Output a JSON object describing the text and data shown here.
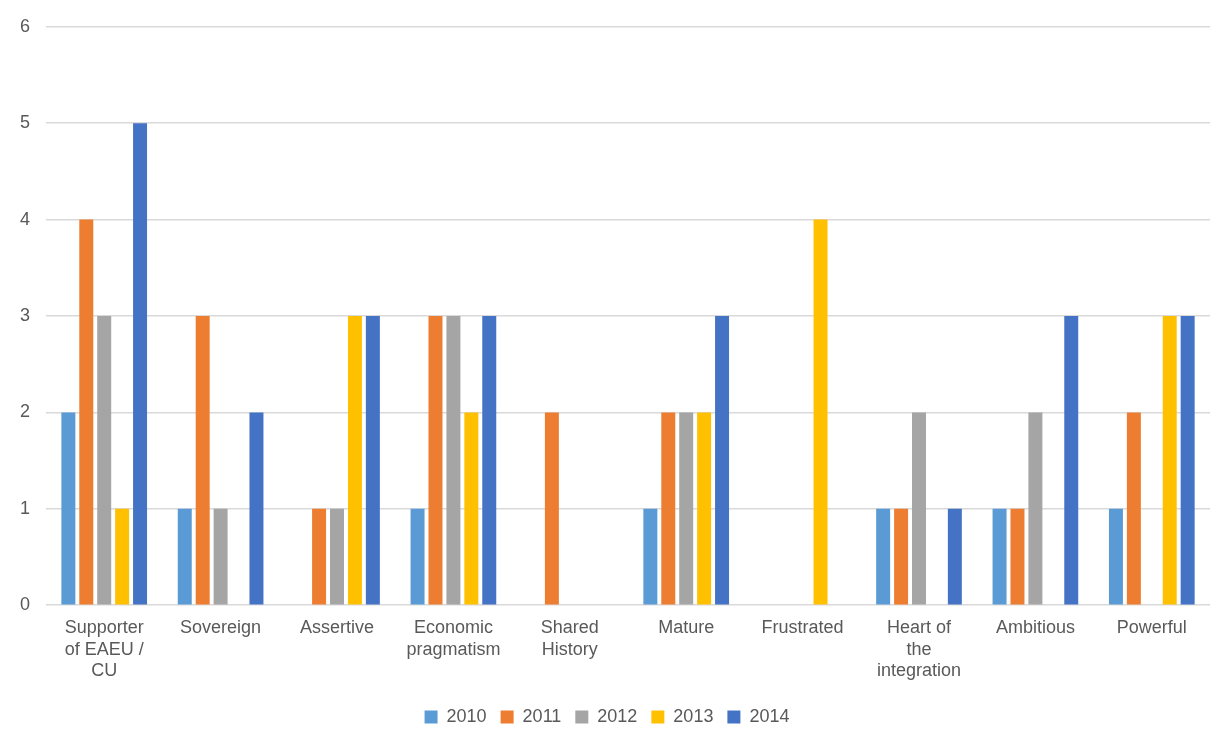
{
  "chart_data": {
    "type": "bar",
    "categories": [
      "Supporter of EAEU / CU",
      "Sovereign",
      "Assertive",
      "Economic pragmatism",
      "Shared History",
      "Mature",
      "Frustrated",
      "Heart of the integration",
      "Ambitious",
      "Powerful"
    ],
    "series": [
      {
        "name": "2010",
        "color": "#5b9bd5",
        "values": [
          2,
          1,
          0,
          1,
          0,
          1,
          0,
          1,
          1,
          1
        ]
      },
      {
        "name": "2011",
        "color": "#ed7d31",
        "values": [
          4,
          3,
          1,
          3,
          2,
          2,
          0,
          1,
          1,
          2
        ]
      },
      {
        "name": "2012",
        "color": "#a5a5a5",
        "values": [
          3,
          1,
          1,
          3,
          0,
          2,
          0,
          2,
          2,
          0
        ]
      },
      {
        "name": "2013",
        "color": "#ffc000",
        "values": [
          1,
          0,
          3,
          2,
          0,
          2,
          4,
          0,
          0,
          3
        ]
      },
      {
        "name": "2014",
        "color": "#4472c4",
        "values": [
          5,
          2,
          3,
          3,
          0,
          3,
          0,
          1,
          3,
          3
        ]
      }
    ],
    "ylim": [
      0,
      6
    ],
    "yticks": [
      0,
      1,
      2,
      3,
      4,
      5,
      6
    ],
    "grid": "y",
    "legend": "bottom"
  }
}
